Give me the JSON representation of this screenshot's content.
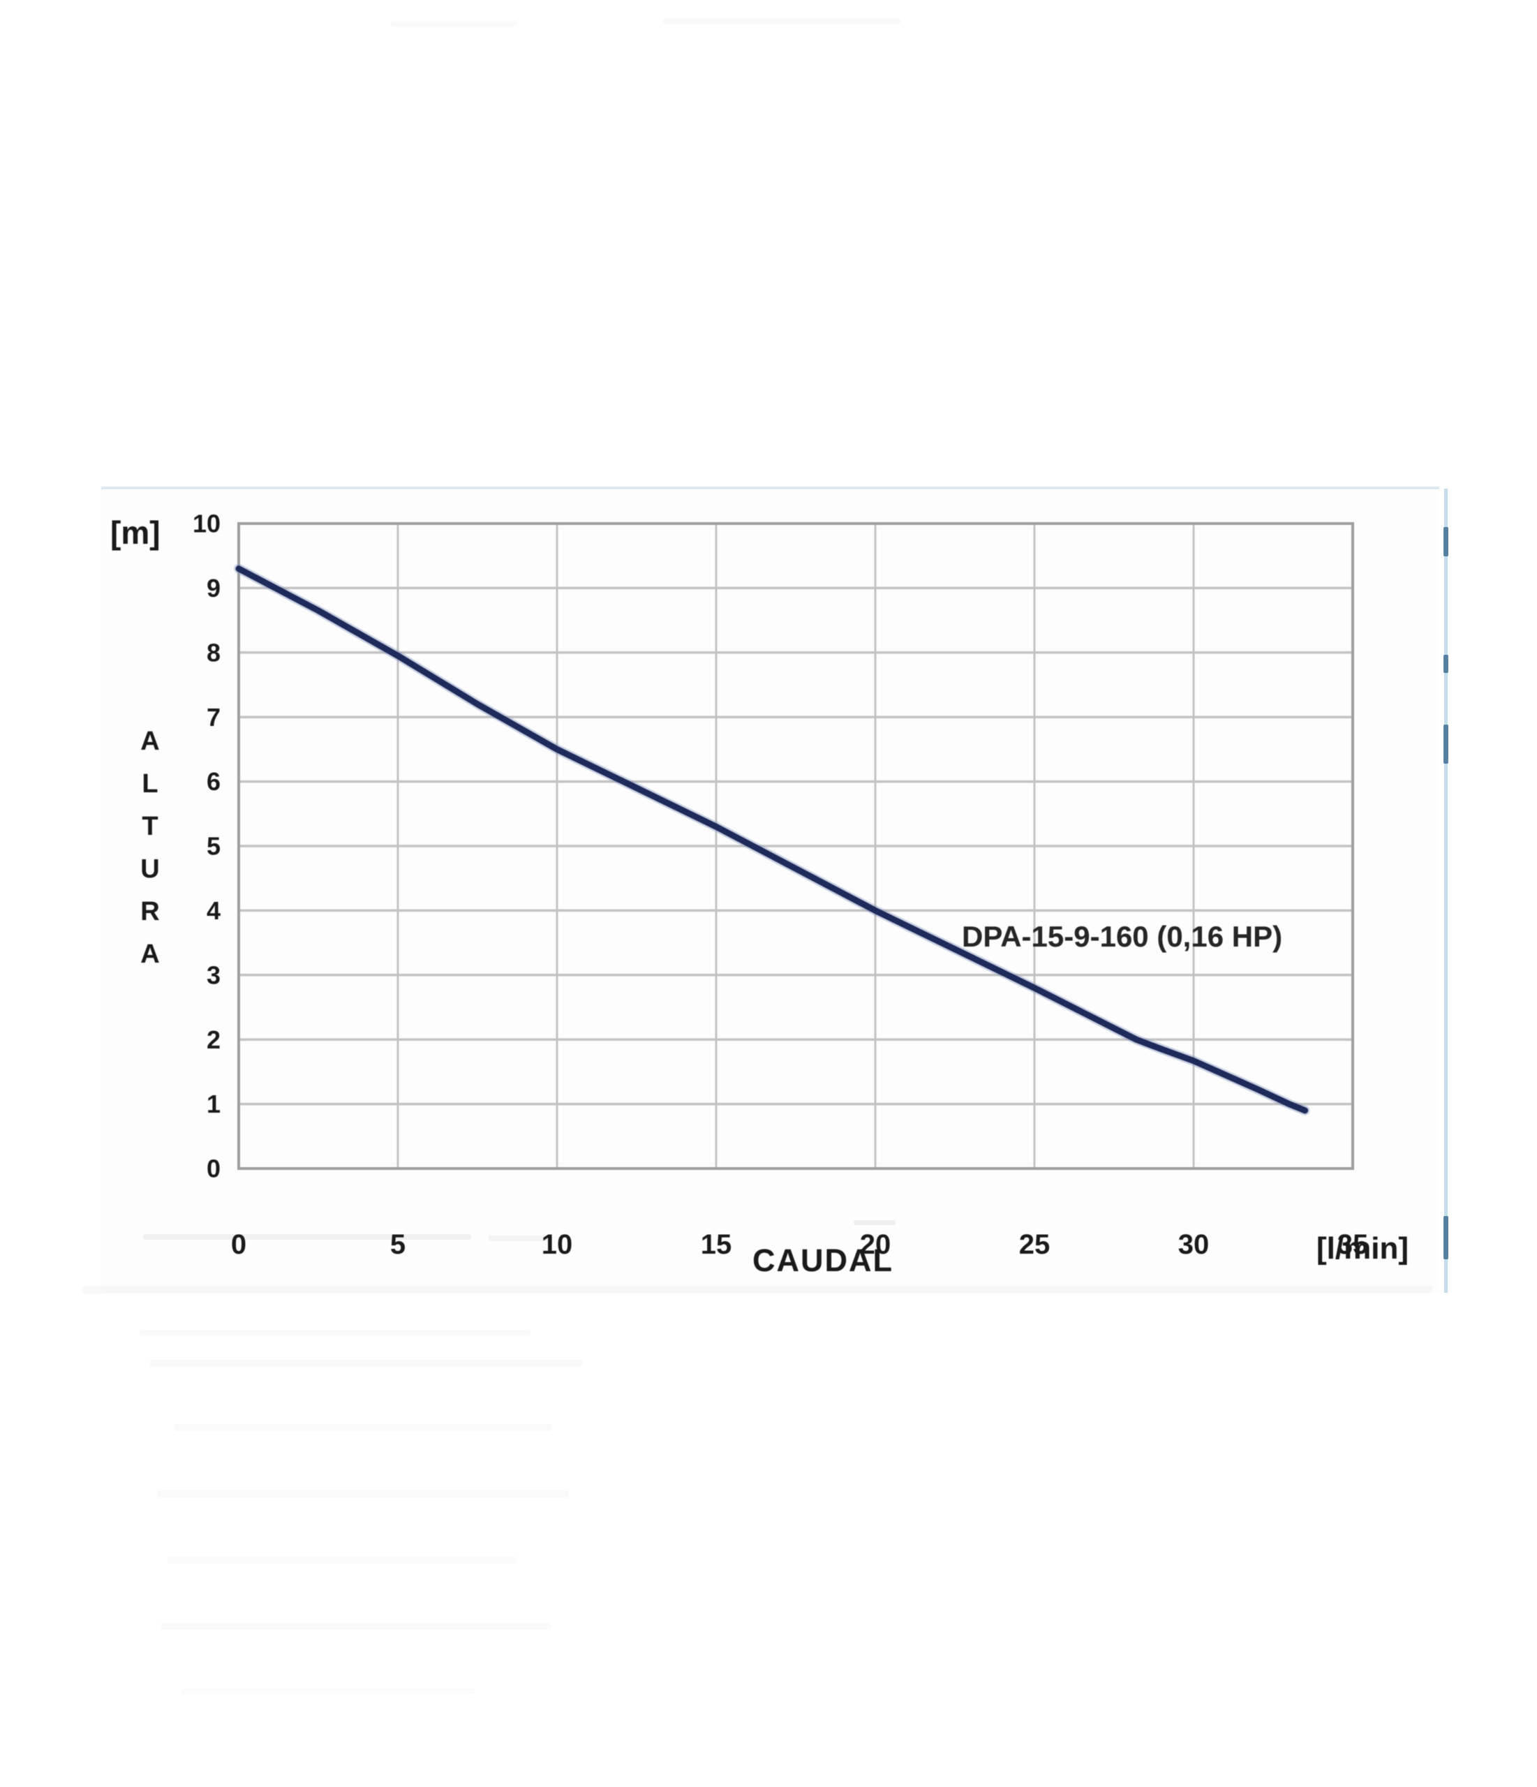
{
  "page": {
    "background": "#ffffff"
  },
  "chart_data": {
    "type": "line",
    "title": "",
    "series_label": "DPA-15-9-160 (0,16 HP)",
    "x_axis": {
      "label": "CAUDAL",
      "unit": "[l/min]",
      "ticks": [
        0,
        5,
        10,
        15,
        20,
        25,
        30,
        35
      ],
      "range": [
        0,
        35
      ]
    },
    "y_axis": {
      "label": "ALTURA",
      "unit": "[m]",
      "ticks": [
        10,
        9,
        8,
        7,
        6,
        5,
        4,
        3,
        2,
        1,
        0
      ],
      "range": [
        0,
        10
      ]
    },
    "series": [
      {
        "name": "DPA-15-9-160 (0,16 HP)",
        "points": [
          [
            0,
            9.3
          ],
          [
            2.5,
            8.65
          ],
          [
            5,
            7.95
          ],
          [
            7.5,
            7.2
          ],
          [
            10,
            6.5
          ],
          [
            12.5,
            5.9
          ],
          [
            15,
            5.3
          ],
          [
            17.5,
            4.65
          ],
          [
            20,
            4.0
          ],
          [
            22.5,
            3.4
          ],
          [
            25,
            2.8
          ],
          [
            27,
            2.3
          ],
          [
            28.2,
            2.0
          ],
          [
            29,
            1.85
          ],
          [
            30,
            1.67
          ],
          [
            31,
            1.45
          ],
          [
            32,
            1.23
          ],
          [
            33,
            1.0
          ],
          [
            33.5,
            0.9
          ]
        ]
      }
    ],
    "grid": true,
    "legend_position": "none",
    "colors": {
      "curve": "#1e2a5a",
      "curve_halo": "#8e9cc4",
      "grid": "#c3c3c3",
      "border": "#9e9e9e",
      "text": "#1a1a1a"
    }
  }
}
